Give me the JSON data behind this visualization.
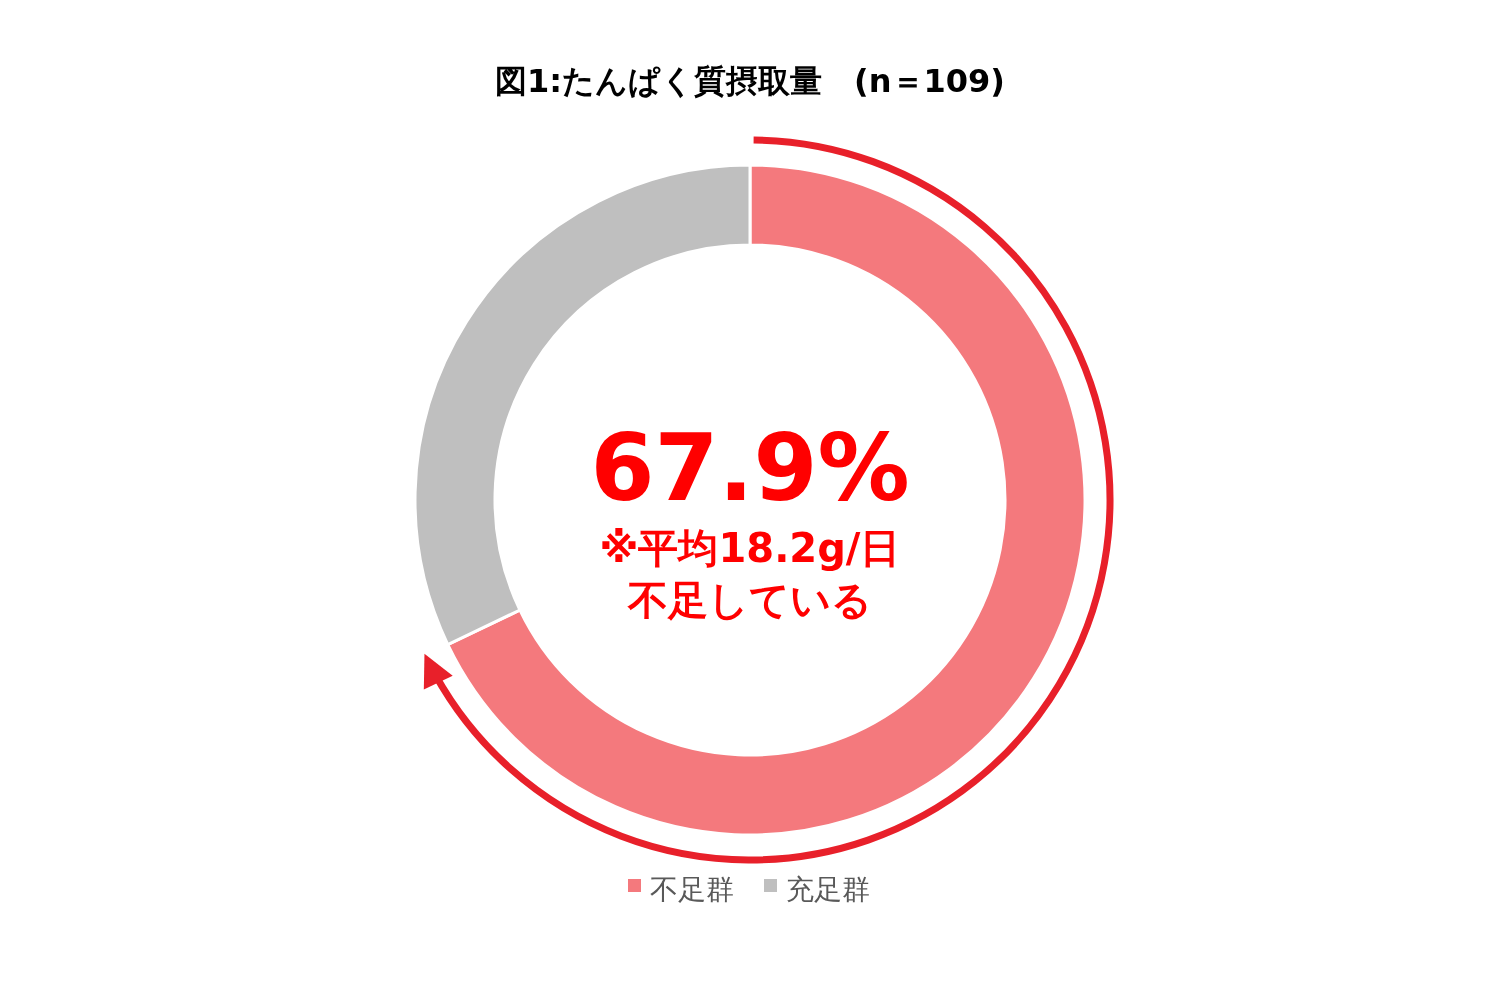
{
  "chart_data": {
    "type": "donut",
    "title": "図1:たんぱく質摂取量　(n＝109)",
    "categories": [
      "不足群",
      "充足群"
    ],
    "values": [
      67.9,
      32.1
    ],
    "colors": [
      "#f4797d",
      "#bfbfbf"
    ],
    "value_labels": [
      "67.9%",
      null
    ],
    "legend": "bottom",
    "annotations": [
      "※平均18.2g/日",
      "不足している"
    ]
  }
}
